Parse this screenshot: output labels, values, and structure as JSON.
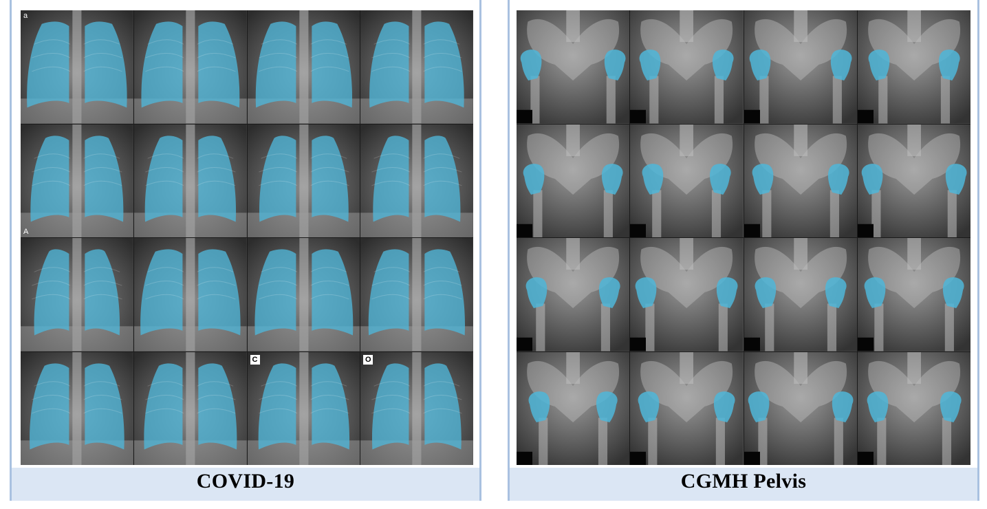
{
  "panels": [
    {
      "caption": "COVID-19",
      "kind": "chest",
      "rows": 4,
      "cols": 4,
      "mask_color": "#4fb6d8",
      "tile_labels": {
        "0": "a",
        "4": "A",
        "14": "C",
        "15": "O"
      }
    },
    {
      "caption": "CGMH Pelvis",
      "kind": "pelvis",
      "rows": 4,
      "cols": 4,
      "mask_color": "#4fb6d8",
      "tile_labels": {}
    }
  ]
}
